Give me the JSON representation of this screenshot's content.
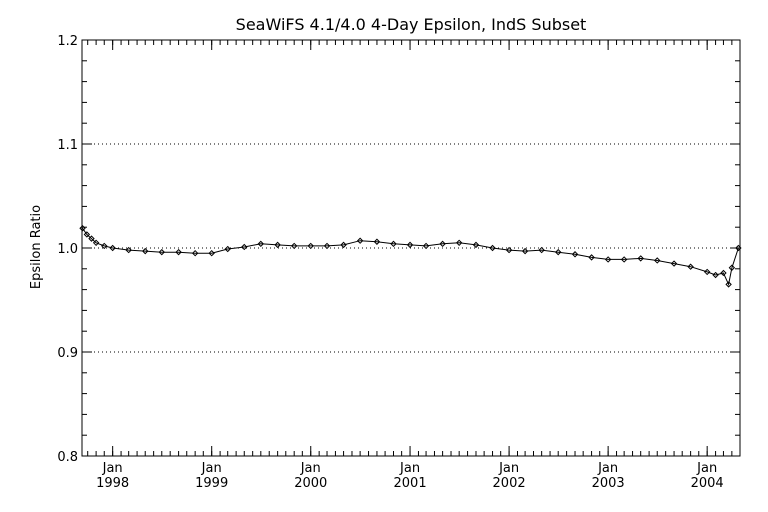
{
  "chart_data": {
    "type": "line",
    "title": "SeaWiFS 4.1/4.0 4-Day Epsilon, IndS Subset",
    "xlabel": "",
    "ylabel": "Epsilon Ratio",
    "ylim": [
      0.8,
      1.2
    ],
    "xlim": [
      "1997-09-10",
      "2004-05-01"
    ],
    "y_ticks": [
      "0.8",
      "0.9",
      "1.0",
      "1.1",
      "1.2"
    ],
    "x_ticks": [
      {
        "date": "1998-01-01",
        "month": "Jan",
        "year": "1998"
      },
      {
        "date": "1999-01-01",
        "month": "Jan",
        "year": "1999"
      },
      {
        "date": "2000-01-01",
        "month": "Jan",
        "year": "2000"
      },
      {
        "date": "2001-01-01",
        "month": "Jan",
        "year": "2001"
      },
      {
        "date": "2002-01-01",
        "month": "Jan",
        "year": "2002"
      },
      {
        "date": "2003-01-01",
        "month": "Jan",
        "year": "2003"
      },
      {
        "date": "2004-01-01",
        "month": "Jan",
        "year": "2004"
      }
    ],
    "grid": {
      "horizontal_dotted": [
        0.9,
        1.0,
        1.1
      ]
    },
    "marker": "diamond",
    "series": [
      {
        "x": [
          "1997-09-12",
          "1997-09-28",
          "1997-10-15",
          "1997-11-01",
          "1997-12-01",
          "1998-01-01",
          "1998-03-01",
          "1998-05-01",
          "1998-07-01",
          "1998-09-01",
          "1998-11-01",
          "1999-01-01",
          "1999-03-01",
          "1999-05-01",
          "1999-07-01",
          "1999-09-01",
          "1999-11-01",
          "2000-01-01",
          "2000-03-01",
          "2000-05-01",
          "2000-07-01",
          "2000-09-01",
          "2000-11-01",
          "2001-01-01",
          "2001-03-01",
          "2001-05-01",
          "2001-07-01",
          "2001-09-01",
          "2001-11-01",
          "2002-01-01",
          "2002-03-01",
          "2002-05-01",
          "2002-07-01",
          "2002-09-01",
          "2002-11-01",
          "2003-01-01",
          "2003-03-01",
          "2003-05-01",
          "2003-07-01",
          "2003-09-01",
          "2003-11-01",
          "2004-01-01",
          "2004-02-01",
          "2004-03-01",
          "2004-03-20",
          "2004-04-01",
          "2004-04-25"
        ],
        "y": [
          1.019,
          1.013,
          1.009,
          1.005,
          1.002,
          1.0,
          0.998,
          0.997,
          0.996,
          0.996,
          0.995,
          0.995,
          0.999,
          1.001,
          1.004,
          1.003,
          1.002,
          1.002,
          1.002,
          1.003,
          1.007,
          1.006,
          1.004,
          1.003,
          1.002,
          1.004,
          1.005,
          1.003,
          1.0,
          0.998,
          0.997,
          0.998,
          0.996,
          0.994,
          0.991,
          0.989,
          0.989,
          0.99,
          0.988,
          0.985,
          0.982,
          0.977,
          0.974,
          0.976,
          0.965,
          0.981,
          1.0
        ]
      }
    ]
  }
}
